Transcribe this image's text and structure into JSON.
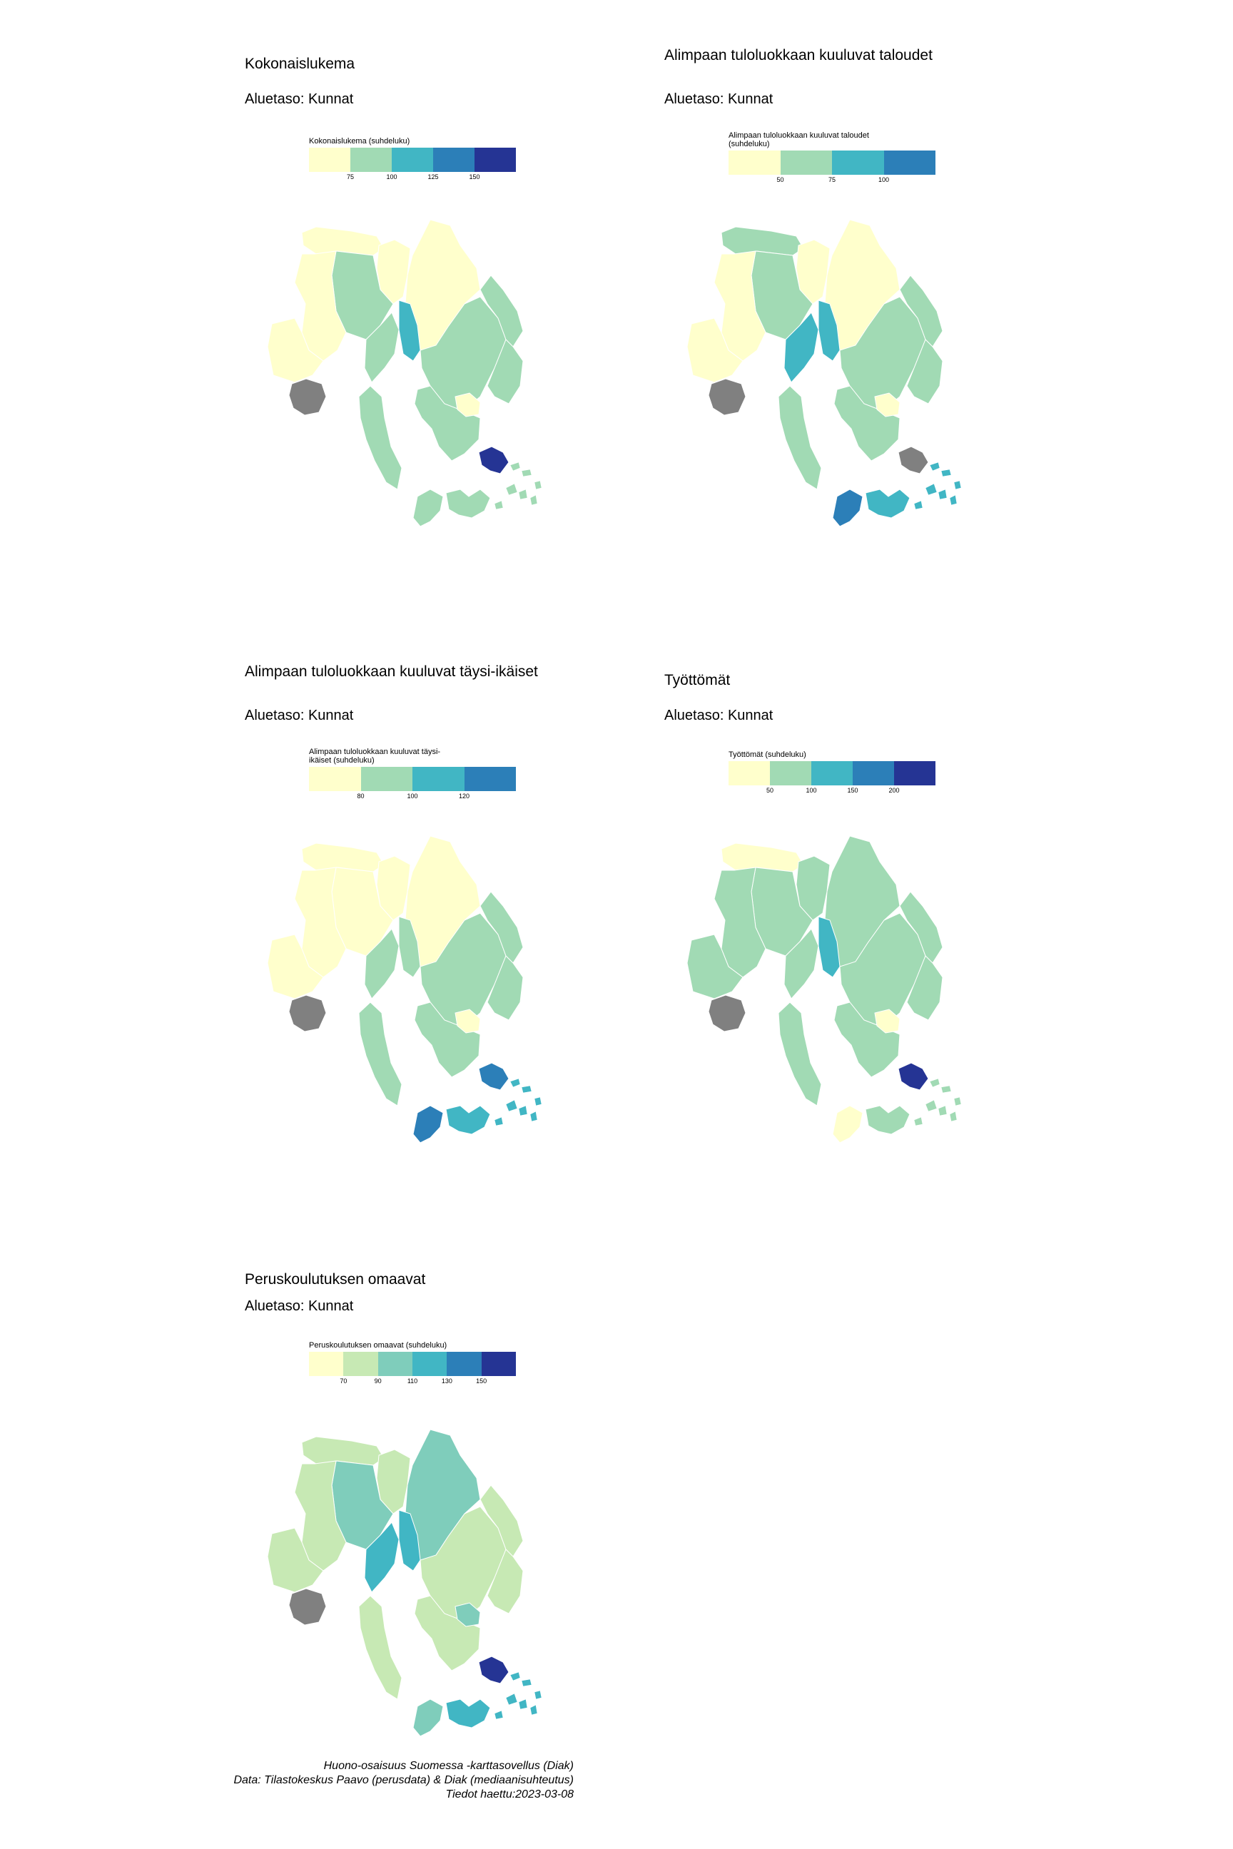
{
  "panels": [
    {
      "title": "Kokonaislukema",
      "subtitle": "Aluetaso: Kunnat",
      "legend": {
        "title": "Kokonaislukema (suhdeluku)",
        "colors": [
          "#ffffcc",
          "#a1dab4",
          "#41b6c4",
          "#2c7fb8",
          "#253494"
        ],
        "ticks": [
          "75",
          "100",
          "125",
          "150"
        ]
      },
      "regions": {
        "northwest_strip": "#ffffcc",
        "north_tower": "#ffffcc",
        "north_mid": "#ffffcc",
        "west_block": "#a1dab4",
        "west_center": "#ffffcc",
        "southwest": "#ffffcc",
        "center_left": "#a1dab4",
        "center_channel": "#41b6c4",
        "center_right": "#a1dab4",
        "east_upper": "#a1dab4",
        "east_lower": "#a1dab4",
        "south_center": "#a1dab4",
        "south_inlet": "#ffffcc",
        "south_west_pen": "#a1dab4",
        "archipelago_west": "#a1dab4",
        "archipelago_east": "#a1dab4",
        "island_dark": "#253494",
        "grey_region": "#808080"
      }
    },
    {
      "title": "Alimpaan tuloluokkaan kuuluvat taloudet",
      "subtitle": "Aluetaso: Kunnat",
      "legend": {
        "title": "Alimpaan tuloluokkaan kuuluvat taloudet (suhdeluku)",
        "colors": [
          "#ffffcc",
          "#a1dab4",
          "#41b6c4",
          "#2c7fb8"
        ],
        "ticks": [
          "50",
          "75",
          "100"
        ]
      },
      "regions": {
        "northwest_strip": "#a1dab4",
        "north_tower": "#ffffcc",
        "north_mid": "#ffffcc",
        "west_block": "#a1dab4",
        "west_center": "#ffffcc",
        "southwest": "#ffffcc",
        "center_left": "#41b6c4",
        "center_channel": "#41b6c4",
        "center_right": "#a1dab4",
        "east_upper": "#a1dab4",
        "east_lower": "#a1dab4",
        "south_center": "#a1dab4",
        "south_inlet": "#ffffcc",
        "south_west_pen": "#a1dab4",
        "archipelago_west": "#2c7fb8",
        "archipelago_east": "#41b6c4",
        "island_dark": "#808080",
        "grey_region": "#808080"
      }
    },
    {
      "title": "Alimpaan tuloluokkaan kuuluvat täysi-ikäiset",
      "subtitle": "Aluetaso: Kunnat",
      "legend": {
        "title": "Alimpaan tuloluokkaan kuuluvat täysi-ikäiset (suhdeluku)",
        "colors": [
          "#ffffcc",
          "#a1dab4",
          "#41b6c4",
          "#2c7fb8"
        ],
        "ticks": [
          "80",
          "100",
          "120"
        ]
      },
      "regions": {
        "northwest_strip": "#ffffcc",
        "north_tower": "#ffffcc",
        "north_mid": "#ffffcc",
        "west_block": "#ffffcc",
        "west_center": "#ffffcc",
        "southwest": "#ffffcc",
        "center_left": "#a1dab4",
        "center_channel": "#a1dab4",
        "center_right": "#a1dab4",
        "east_upper": "#a1dab4",
        "east_lower": "#a1dab4",
        "south_center": "#a1dab4",
        "south_inlet": "#ffffcc",
        "south_west_pen": "#a1dab4",
        "archipelago_west": "#2c7fb8",
        "archipelago_east": "#41b6c4",
        "island_dark": "#2c7fb8",
        "grey_region": "#808080"
      }
    },
    {
      "title": "Työttömät",
      "subtitle": "Aluetaso: Kunnat",
      "legend": {
        "title": "Työttömät (suhdeluku)",
        "colors": [
          "#ffffcc",
          "#a1dab4",
          "#41b6c4",
          "#2c7fb8",
          "#253494"
        ],
        "ticks": [
          "50",
          "100",
          "150",
          "200"
        ]
      },
      "regions": {
        "northwest_strip": "#ffffcc",
        "north_tower": "#a1dab4",
        "north_mid": "#a1dab4",
        "west_block": "#a1dab4",
        "west_center": "#a1dab4",
        "southwest": "#a1dab4",
        "center_left": "#a1dab4",
        "center_channel": "#41b6c4",
        "center_right": "#a1dab4",
        "east_upper": "#a1dab4",
        "east_lower": "#a1dab4",
        "south_center": "#a1dab4",
        "south_inlet": "#ffffcc",
        "south_west_pen": "#a1dab4",
        "archipelago_west": "#ffffcc",
        "archipelago_east": "#a1dab4",
        "island_dark": "#253494",
        "grey_region": "#808080"
      }
    },
    {
      "title": "Peruskoulutuksen omaavat",
      "subtitle": "Aluetaso: Kunnat",
      "legend": {
        "title": "Peruskoulutuksen omaavat (suhdeluku)",
        "colors": [
          "#ffffcc",
          "#c7e9b4",
          "#7fcdbb",
          "#41b6c4",
          "#2c7fb8",
          "#253494"
        ],
        "ticks": [
          "70",
          "90",
          "110",
          "130",
          "150"
        ]
      },
      "regions": {
        "northwest_strip": "#c7e9b4",
        "north_tower": "#7fcdbb",
        "north_mid": "#c7e9b4",
        "west_block": "#7fcdbb",
        "west_center": "#c7e9b4",
        "southwest": "#c7e9b4",
        "center_left": "#41b6c4",
        "center_channel": "#41b6c4",
        "center_right": "#c7e9b4",
        "east_upper": "#c7e9b4",
        "east_lower": "#c7e9b4",
        "south_center": "#c7e9b4",
        "south_inlet": "#7fcdbb",
        "south_west_pen": "#c7e9b4",
        "archipelago_west": "#7fcdbb",
        "archipelago_east": "#41b6c4",
        "island_dark": "#253494",
        "grey_region": "#808080"
      }
    }
  ],
  "credits": {
    "line1": "Huono-osaisuus Suomessa -karttasovellus (Diak)",
    "line2": "Data: Tilastokeskus Paavo (perusdata) & Diak (mediaanisuhteutus)",
    "line3": "Tiedot haettu:2023-03-08"
  }
}
